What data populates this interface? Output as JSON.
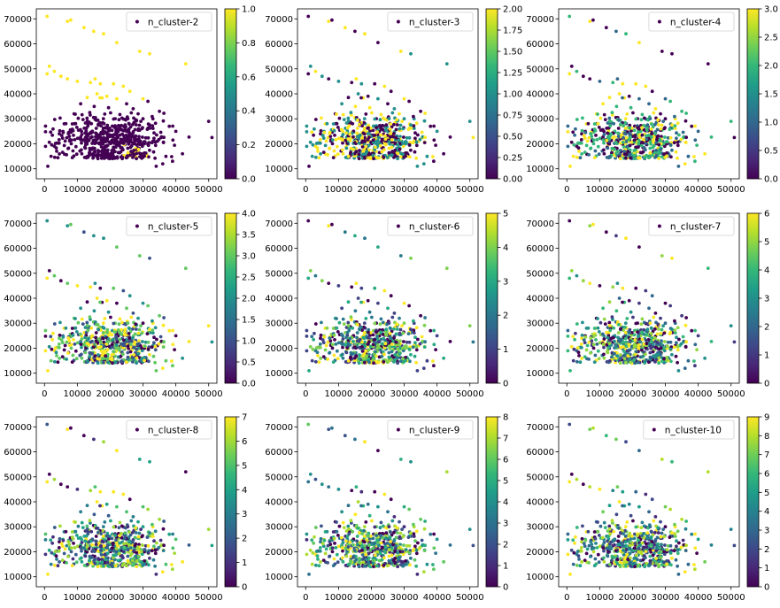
{
  "figure": {
    "colormap": "viridis",
    "colormap_stops": [
      "#440154",
      "#482878",
      "#3e4989",
      "#31688e",
      "#26828e",
      "#1f9e89",
      "#35b779",
      "#6ece58",
      "#b5de2b",
      "#fde725"
    ]
  },
  "chart_data": [
    {
      "type": "scatter",
      "legend": "n_cluster-2",
      "legend_position": "top-right",
      "n_clusters": 2,
      "colorbar_range": [
        0,
        1
      ],
      "colorbar_ticks": [
        "0.0",
        "0.2",
        "0.4",
        "0.6",
        "0.8",
        "1.0"
      ],
      "xlim": [
        -2500,
        52500
      ],
      "ylim": [
        6000,
        74000
      ],
      "x_ticks": [
        "0",
        "10000",
        "20000",
        "30000",
        "40000",
        "50000"
      ],
      "y_ticks": [
        "10000",
        "20000",
        "30000",
        "40000",
        "50000",
        "60000",
        "70000"
      ],
      "grid": false
    },
    {
      "type": "scatter",
      "legend": "n_cluster-3",
      "legend_position": "top-right",
      "n_clusters": 3,
      "colorbar_range": [
        0,
        2
      ],
      "colorbar_ticks": [
        "0.00",
        "0.25",
        "0.50",
        "0.75",
        "1.00",
        "1.25",
        "1.50",
        "1.75",
        "2.00"
      ],
      "xlim": [
        -2500,
        52500
      ],
      "ylim": [
        6000,
        74000
      ],
      "x_ticks": [
        "0",
        "10000",
        "20000",
        "30000",
        "40000",
        "50000"
      ],
      "y_ticks": [
        "10000",
        "20000",
        "30000",
        "40000",
        "50000",
        "60000",
        "70000"
      ],
      "grid": false
    },
    {
      "type": "scatter",
      "legend": "n_cluster-4",
      "legend_position": "top-right",
      "n_clusters": 4,
      "colorbar_range": [
        0,
        3
      ],
      "colorbar_ticks": [
        "0.0",
        "0.5",
        "1.0",
        "1.5",
        "2.0",
        "2.5",
        "3.0"
      ],
      "xlim": [
        -2500,
        52500
      ],
      "ylim": [
        6000,
        74000
      ],
      "x_ticks": [
        "0",
        "10000",
        "20000",
        "30000",
        "40000",
        "50000"
      ],
      "y_ticks": [
        "10000",
        "20000",
        "30000",
        "40000",
        "50000",
        "60000",
        "70000"
      ],
      "grid": false
    },
    {
      "type": "scatter",
      "legend": "n_cluster-5",
      "legend_position": "top-right",
      "n_clusters": 5,
      "colorbar_range": [
        0,
        4
      ],
      "colorbar_ticks": [
        "0.0",
        "0.5",
        "1.0",
        "1.5",
        "2.0",
        "2.5",
        "3.0",
        "3.5",
        "4.0"
      ],
      "xlim": [
        -2500,
        52500
      ],
      "ylim": [
        6000,
        74000
      ],
      "x_ticks": [
        "0",
        "10000",
        "20000",
        "30000",
        "40000",
        "50000"
      ],
      "y_ticks": [
        "10000",
        "20000",
        "30000",
        "40000",
        "50000",
        "60000",
        "70000"
      ],
      "grid": false
    },
    {
      "type": "scatter",
      "legend": "n_cluster-6",
      "legend_position": "top-right",
      "n_clusters": 6,
      "colorbar_range": [
        0,
        5
      ],
      "colorbar_ticks": [
        "0",
        "1",
        "2",
        "3",
        "4",
        "5"
      ],
      "xlim": [
        -2500,
        52500
      ],
      "ylim": [
        6000,
        74000
      ],
      "x_ticks": [
        "0",
        "10000",
        "20000",
        "30000",
        "40000",
        "50000"
      ],
      "y_ticks": [
        "10000",
        "20000",
        "30000",
        "40000",
        "50000",
        "60000",
        "70000"
      ],
      "grid": false
    },
    {
      "type": "scatter",
      "legend": "n_cluster-7",
      "legend_position": "top-right",
      "n_clusters": 7,
      "colorbar_range": [
        0,
        6
      ],
      "colorbar_ticks": [
        "0",
        "1",
        "2",
        "3",
        "4",
        "5",
        "6"
      ],
      "xlim": [
        -2500,
        52500
      ],
      "ylim": [
        6000,
        74000
      ],
      "x_ticks": [
        "0",
        "10000",
        "20000",
        "30000",
        "40000",
        "50000"
      ],
      "y_ticks": [
        "10000",
        "20000",
        "30000",
        "40000",
        "50000",
        "60000",
        "70000"
      ],
      "grid": false
    },
    {
      "type": "scatter",
      "legend": "n_cluster-8",
      "legend_position": "top-right",
      "n_clusters": 8,
      "colorbar_range": [
        0,
        7
      ],
      "colorbar_ticks": [
        "0",
        "1",
        "2",
        "3",
        "4",
        "5",
        "6",
        "7"
      ],
      "xlim": [
        -2500,
        52500
      ],
      "ylim": [
        6000,
        74000
      ],
      "x_ticks": [
        "0",
        "10000",
        "20000",
        "30000",
        "40000",
        "50000"
      ],
      "y_ticks": [
        "10000",
        "20000",
        "30000",
        "40000",
        "50000",
        "60000",
        "70000"
      ],
      "grid": false
    },
    {
      "type": "scatter",
      "legend": "n_cluster-9",
      "legend_position": "top-right",
      "n_clusters": 9,
      "colorbar_range": [
        0,
        8
      ],
      "colorbar_ticks": [
        "0",
        "1",
        "2",
        "3",
        "4",
        "5",
        "6",
        "7",
        "8"
      ],
      "xlim": [
        -2500,
        52500
      ],
      "ylim": [
        6000,
        74000
      ],
      "x_ticks": [
        "0",
        "10000",
        "20000",
        "30000",
        "40000",
        "50000"
      ],
      "y_ticks": [
        "10000",
        "20000",
        "30000",
        "40000",
        "50000",
        "60000",
        "70000"
      ],
      "grid": false
    },
    {
      "type": "scatter",
      "legend": "n_cluster-10",
      "legend_position": "top-right",
      "n_clusters": 10,
      "colorbar_range": [
        0,
        9
      ],
      "colorbar_ticks": [
        "0",
        "1",
        "2",
        "3",
        "4",
        "5",
        "6",
        "7",
        "8",
        "9"
      ],
      "xlim": [
        -2500,
        52500
      ],
      "ylim": [
        6000,
        74000
      ],
      "x_ticks": [
        "0",
        "10000",
        "20000",
        "30000",
        "40000",
        "50000"
      ],
      "y_ticks": [
        "10000",
        "20000",
        "30000",
        "40000",
        "50000",
        "60000",
        "70000"
      ],
      "grid": false
    }
  ],
  "points": [
    [
      800,
      71000
    ],
    [
      7000,
      69000
    ],
    [
      8000,
      69500
    ],
    [
      12000,
      66500
    ],
    [
      15000,
      65000
    ],
    [
      18000,
      64000
    ],
    [
      22000,
      60500
    ],
    [
      29000,
      57000
    ],
    [
      32000,
      56000
    ],
    [
      43000,
      52000
    ],
    [
      1500,
      51000
    ],
    [
      3000,
      49000
    ],
    [
      800,
      48000
    ],
    [
      5000,
      47000
    ],
    [
      7000,
      46000
    ],
    [
      10000,
      45000
    ],
    [
      14000,
      44500
    ],
    [
      17000,
      44000
    ],
    [
      21000,
      44000
    ],
    [
      24000,
      43000
    ],
    [
      26000,
      41000
    ],
    [
      30000,
      38000
    ],
    [
      31500,
      37000
    ],
    [
      50000,
      29000
    ],
    [
      51000,
      22500
    ],
    [
      35000,
      33000
    ],
    [
      33000,
      30000
    ],
    [
      38000,
      27000
    ],
    [
      40000,
      25000
    ],
    [
      42000,
      16000
    ],
    [
      39000,
      13000
    ],
    [
      36000,
      12000
    ],
    [
      34000,
      11000
    ],
    [
      1000,
      11000
    ],
    [
      2000,
      15000
    ],
    [
      3000,
      19000
    ],
    [
      4500,
      24000
    ],
    [
      6000,
      28000
    ],
    [
      9000,
      32000
    ],
    [
      11000,
      36000
    ],
    [
      13000,
      38500
    ],
    [
      16000,
      40000
    ],
    [
      19000,
      39000
    ],
    [
      22000,
      38000
    ],
    [
      25000,
      36000
    ],
    [
      27000,
      34000
    ],
    [
      28500,
      32000
    ],
    [
      30000,
      30000
    ]
  ]
}
